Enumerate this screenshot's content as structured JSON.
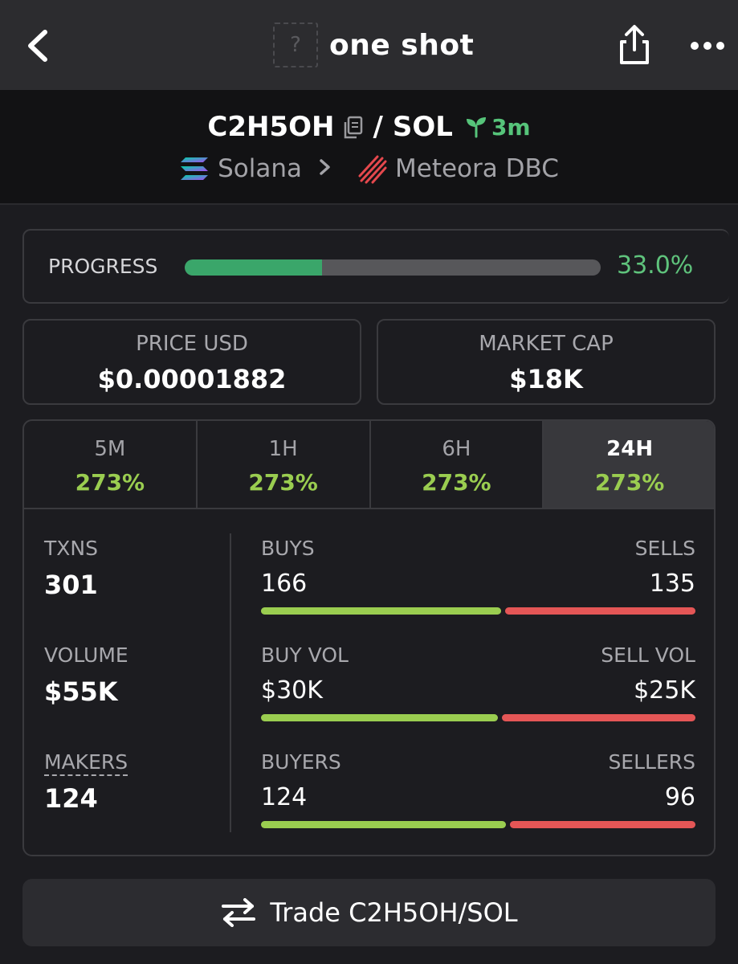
{
  "header": {
    "title": "one shot",
    "token_placeholder": "?",
    "back_icon": "chevron-left-icon",
    "share_icon": "share-icon",
    "more_icon": "more-horizontal-icon"
  },
  "pair": {
    "base": "C2H5OH",
    "separator": "/",
    "quote": "SOL",
    "age": "3m",
    "chain": "Solana",
    "dex": "Meteora DBC"
  },
  "progress": {
    "label": "PROGRESS",
    "value_text": "33.0%",
    "fraction": 0.33
  },
  "stats": {
    "price_label": "PRICE USD",
    "price_value": "$0.00001882",
    "mcap_label": "MARKET CAP",
    "mcap_value": "$18K"
  },
  "timeframes": [
    {
      "name": "5M",
      "change": "273%"
    },
    {
      "name": "1H",
      "change": "273%"
    },
    {
      "name": "6H",
      "change": "273%"
    },
    {
      "name": "24H",
      "change": "273%",
      "active": true
    }
  ],
  "left_stats": {
    "txns_label": "TXNS",
    "txns_value": "301",
    "volume_label": "VOLUME",
    "volume_value": "$55K",
    "makers_label": "MAKERS",
    "makers_value": "124"
  },
  "ratios": [
    {
      "left_label": "BUYS",
      "left_value": "166",
      "right_label": "SELLS",
      "right_value": "135",
      "buy_fraction": 0.552
    },
    {
      "left_label": "BUY VOL",
      "left_value": "$30K",
      "right_label": "SELL VOL",
      "right_value": "$25K",
      "buy_fraction": 0.545
    },
    {
      "left_label": "BUYERS",
      "left_value": "124",
      "right_label": "SELLERS",
      "right_value": "96",
      "buy_fraction": 0.564
    }
  ],
  "trade": {
    "label": "Trade C2H5OH/SOL",
    "icon": "swap-arrows-icon"
  },
  "colors": {
    "green_bar": "#3aa66a",
    "green_text": "#5fc37c",
    "buy": "#9acd50",
    "sell": "#e45656"
  }
}
